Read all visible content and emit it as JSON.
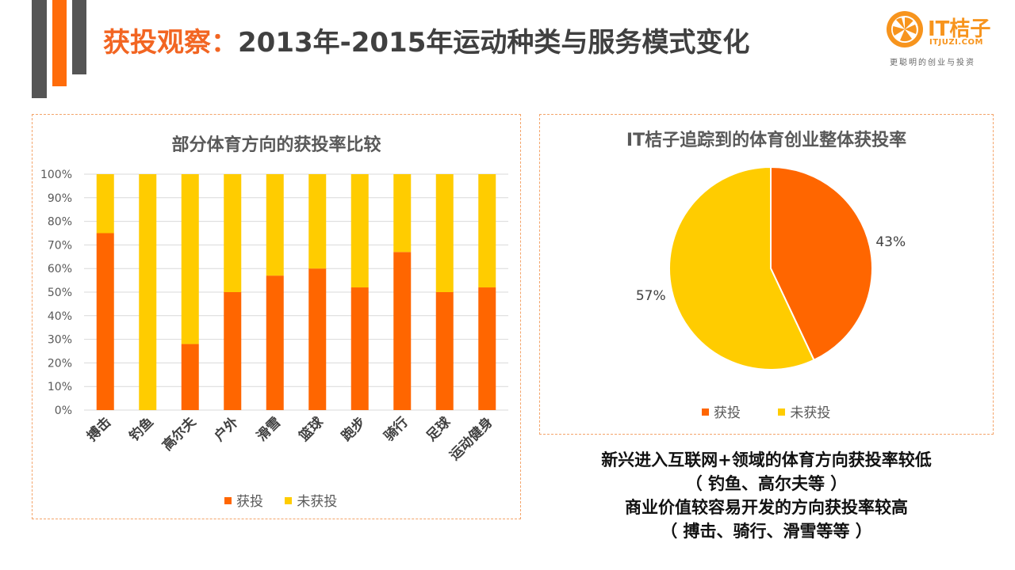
{
  "header": {
    "title_highlight": "获投观察：",
    "title_rest": "2013年-2015年运动种类与服务模式变化"
  },
  "logo": {
    "name": "IT桔子",
    "url": "ITJUZI.COM",
    "slogan": "更聪明的创业与投资",
    "icon": "orange-slice-icon"
  },
  "colors": {
    "funded": "#ff6600",
    "unfunded": "#ffcc00",
    "accent": "#f26522"
  },
  "chart_data": [
    {
      "type": "bar",
      "stacked": true,
      "title": "部分体育方向的获投率比较",
      "categories": [
        "搏击",
        "钓鱼",
        "高尔夫",
        "户外",
        "滑雪",
        "篮球",
        "跑步",
        "骑行",
        "足球",
        "运动健身"
      ],
      "series": [
        {
          "name": "获投",
          "values": [
            75,
            0,
            28,
            50,
            57,
            60,
            52,
            67,
            50,
            52
          ]
        },
        {
          "name": "未获投",
          "values": [
            25,
            100,
            72,
            50,
            43,
            40,
            48,
            33,
            50,
            48
          ]
        }
      ],
      "yticks": [
        "0%",
        "10%",
        "20%",
        "30%",
        "40%",
        "50%",
        "60%",
        "70%",
        "80%",
        "90%",
        "100%"
      ],
      "ylim": [
        0,
        100
      ],
      "legend_position": "bottom",
      "grid": true
    },
    {
      "type": "pie",
      "title": "IT桔子追踪到的体育创业整体获投率",
      "slices": [
        {
          "label": "获投",
          "value": 43,
          "text": "43%"
        },
        {
          "label": "未获投",
          "value": 57,
          "text": "57%"
        }
      ],
      "legend_position": "bottom"
    }
  ],
  "note": {
    "line1": "新兴进入互联网+领域的体育方向获投率较低",
    "line2": "（ 钓鱼、高尔夫等 ）",
    "line3": "商业价值较容易开发的方向获投率较高",
    "line4": "（ 搏击、骑行、滑雪等等 ）"
  }
}
